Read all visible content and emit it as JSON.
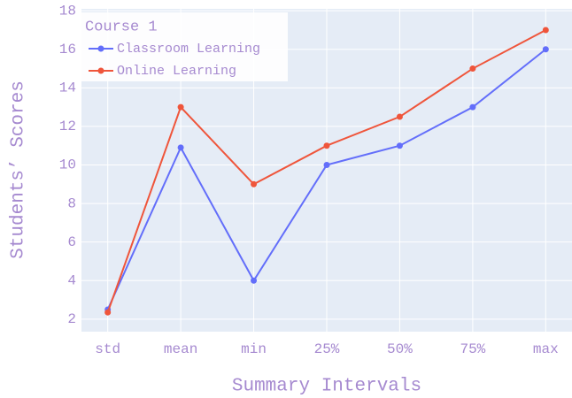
{
  "chart_data": {
    "type": "line",
    "x_label": "Summary Intervals",
    "y_label": "Students’ Scores",
    "legend_title": "Course 1",
    "legend_position": "upper left",
    "grid": true,
    "categories": [
      "std",
      "mean",
      "min",
      "25%",
      "50%",
      "75%",
      "max"
    ],
    "series": [
      {
        "name": "Classroom Learning",
        "color": "#636efa",
        "values": [
          2.5,
          10.9,
          4.0,
          10.0,
          11.0,
          13.0,
          16.0
        ]
      },
      {
        "name": "Online Learning",
        "color": "#ef553b",
        "values": [
          2.35,
          13.0,
          9.0,
          11.0,
          12.5,
          15.0,
          17.0
        ]
      }
    ],
    "ylim": [
      1.35,
      18.1
    ],
    "yticks": [
      2,
      4,
      6,
      8,
      10,
      12,
      14,
      16,
      18
    ]
  }
}
